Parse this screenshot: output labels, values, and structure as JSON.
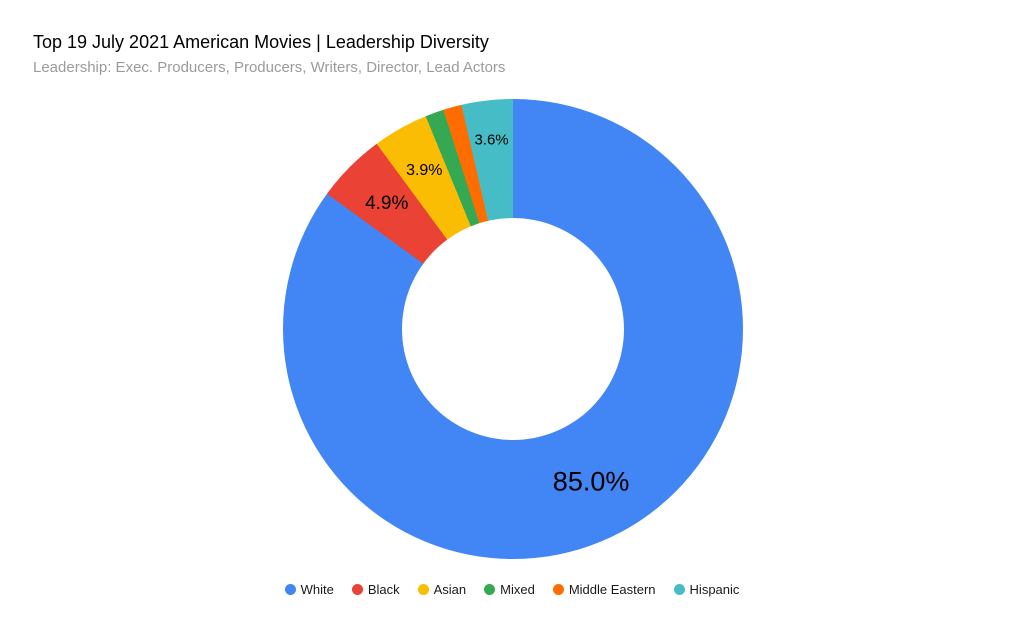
{
  "chart": {
    "title": "Top 19 July 2021 American Movies | Leadership Diversity",
    "subtitle": "Leadership: Exec. Producers, Producers, Writers, Director, Lead Actors",
    "title_color": "#000000",
    "subtitle_color": "#9b9b9b",
    "background_color": "#ffffff"
  },
  "chart_data": {
    "type": "pie",
    "donut": true,
    "title": "Top 19 July 2021 American Movies | Leadership Diversity",
    "subtitle": "Leadership: Exec. Producers, Producers, Writers, Director, Lead Actors",
    "legend_position": "bottom",
    "start_angle_deg": 0,
    "direction": "clockwise",
    "slices": [
      {
        "label": "White",
        "value": 85.0,
        "display": "85.0%",
        "color": "#4285F4"
      },
      {
        "label": "Black",
        "value": 4.9,
        "display": "4.9%",
        "color": "#EA4335"
      },
      {
        "label": "Asian",
        "value": 3.9,
        "display": "3.9%",
        "color": "#FBBC04"
      },
      {
        "label": "Mixed",
        "value": 1.3,
        "display": "",
        "color": "#34A853"
      },
      {
        "label": "Middle Eastern",
        "value": 1.3,
        "display": "",
        "color": "#FF6D01"
      },
      {
        "label": "Hispanic",
        "value": 3.6,
        "display": "3.6%",
        "color": "#46BDC6"
      }
    ]
  }
}
